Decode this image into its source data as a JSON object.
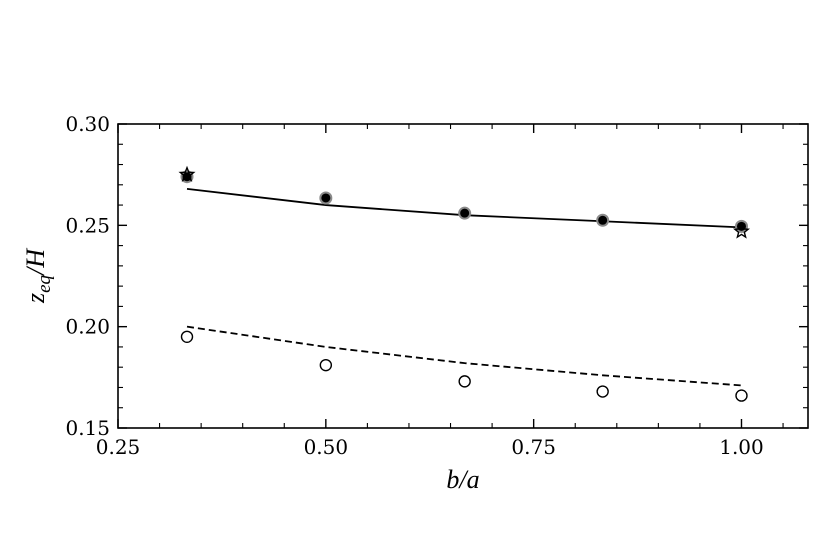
{
  "chart_data": {
    "type": "scatter",
    "xlabel": "b/a",
    "ylabel_parts": {
      "main": "z",
      "sub": "eq",
      "tail": "/H"
    },
    "xlim": [
      0.25,
      1.08
    ],
    "ylim": [
      0.15,
      0.3
    ],
    "xticks": [
      0.25,
      0.5,
      0.75,
      1.0
    ],
    "xtick_labels": [
      "0.25",
      "0.50",
      "0.75",
      "1.00"
    ],
    "yticks": [
      0.15,
      0.2,
      0.25,
      0.3
    ],
    "ytick_labels": [
      "0.15",
      "0.20",
      "0.25",
      "0.30"
    ],
    "grid": false,
    "legend": "none",
    "series": [
      {
        "style": "line-solid",
        "x": [
          0.333,
          0.5,
          0.667,
          0.833,
          1.0
        ],
        "values": [
          0.268,
          0.26,
          0.255,
          0.252,
          0.249
        ]
      },
      {
        "style": "line-dashed",
        "x": [
          0.333,
          0.5,
          0.667,
          0.833,
          1.0
        ],
        "values": [
          0.2,
          0.19,
          0.182,
          0.176,
          0.171
        ]
      },
      {
        "style": "marker-filled-circle",
        "x": [
          0.333,
          0.5,
          0.667,
          0.833,
          1.0
        ],
        "values": [
          0.274,
          0.2635,
          0.256,
          0.2525,
          0.2495
        ]
      },
      {
        "style": "marker-open-circle",
        "x": [
          0.333,
          0.5,
          0.667,
          0.833,
          1.0
        ],
        "values": [
          0.195,
          0.181,
          0.173,
          0.168,
          0.166
        ]
      },
      {
        "style": "marker-star",
        "x": [
          0.333,
          1.0
        ],
        "values": [
          0.275,
          0.247
        ]
      }
    ]
  }
}
